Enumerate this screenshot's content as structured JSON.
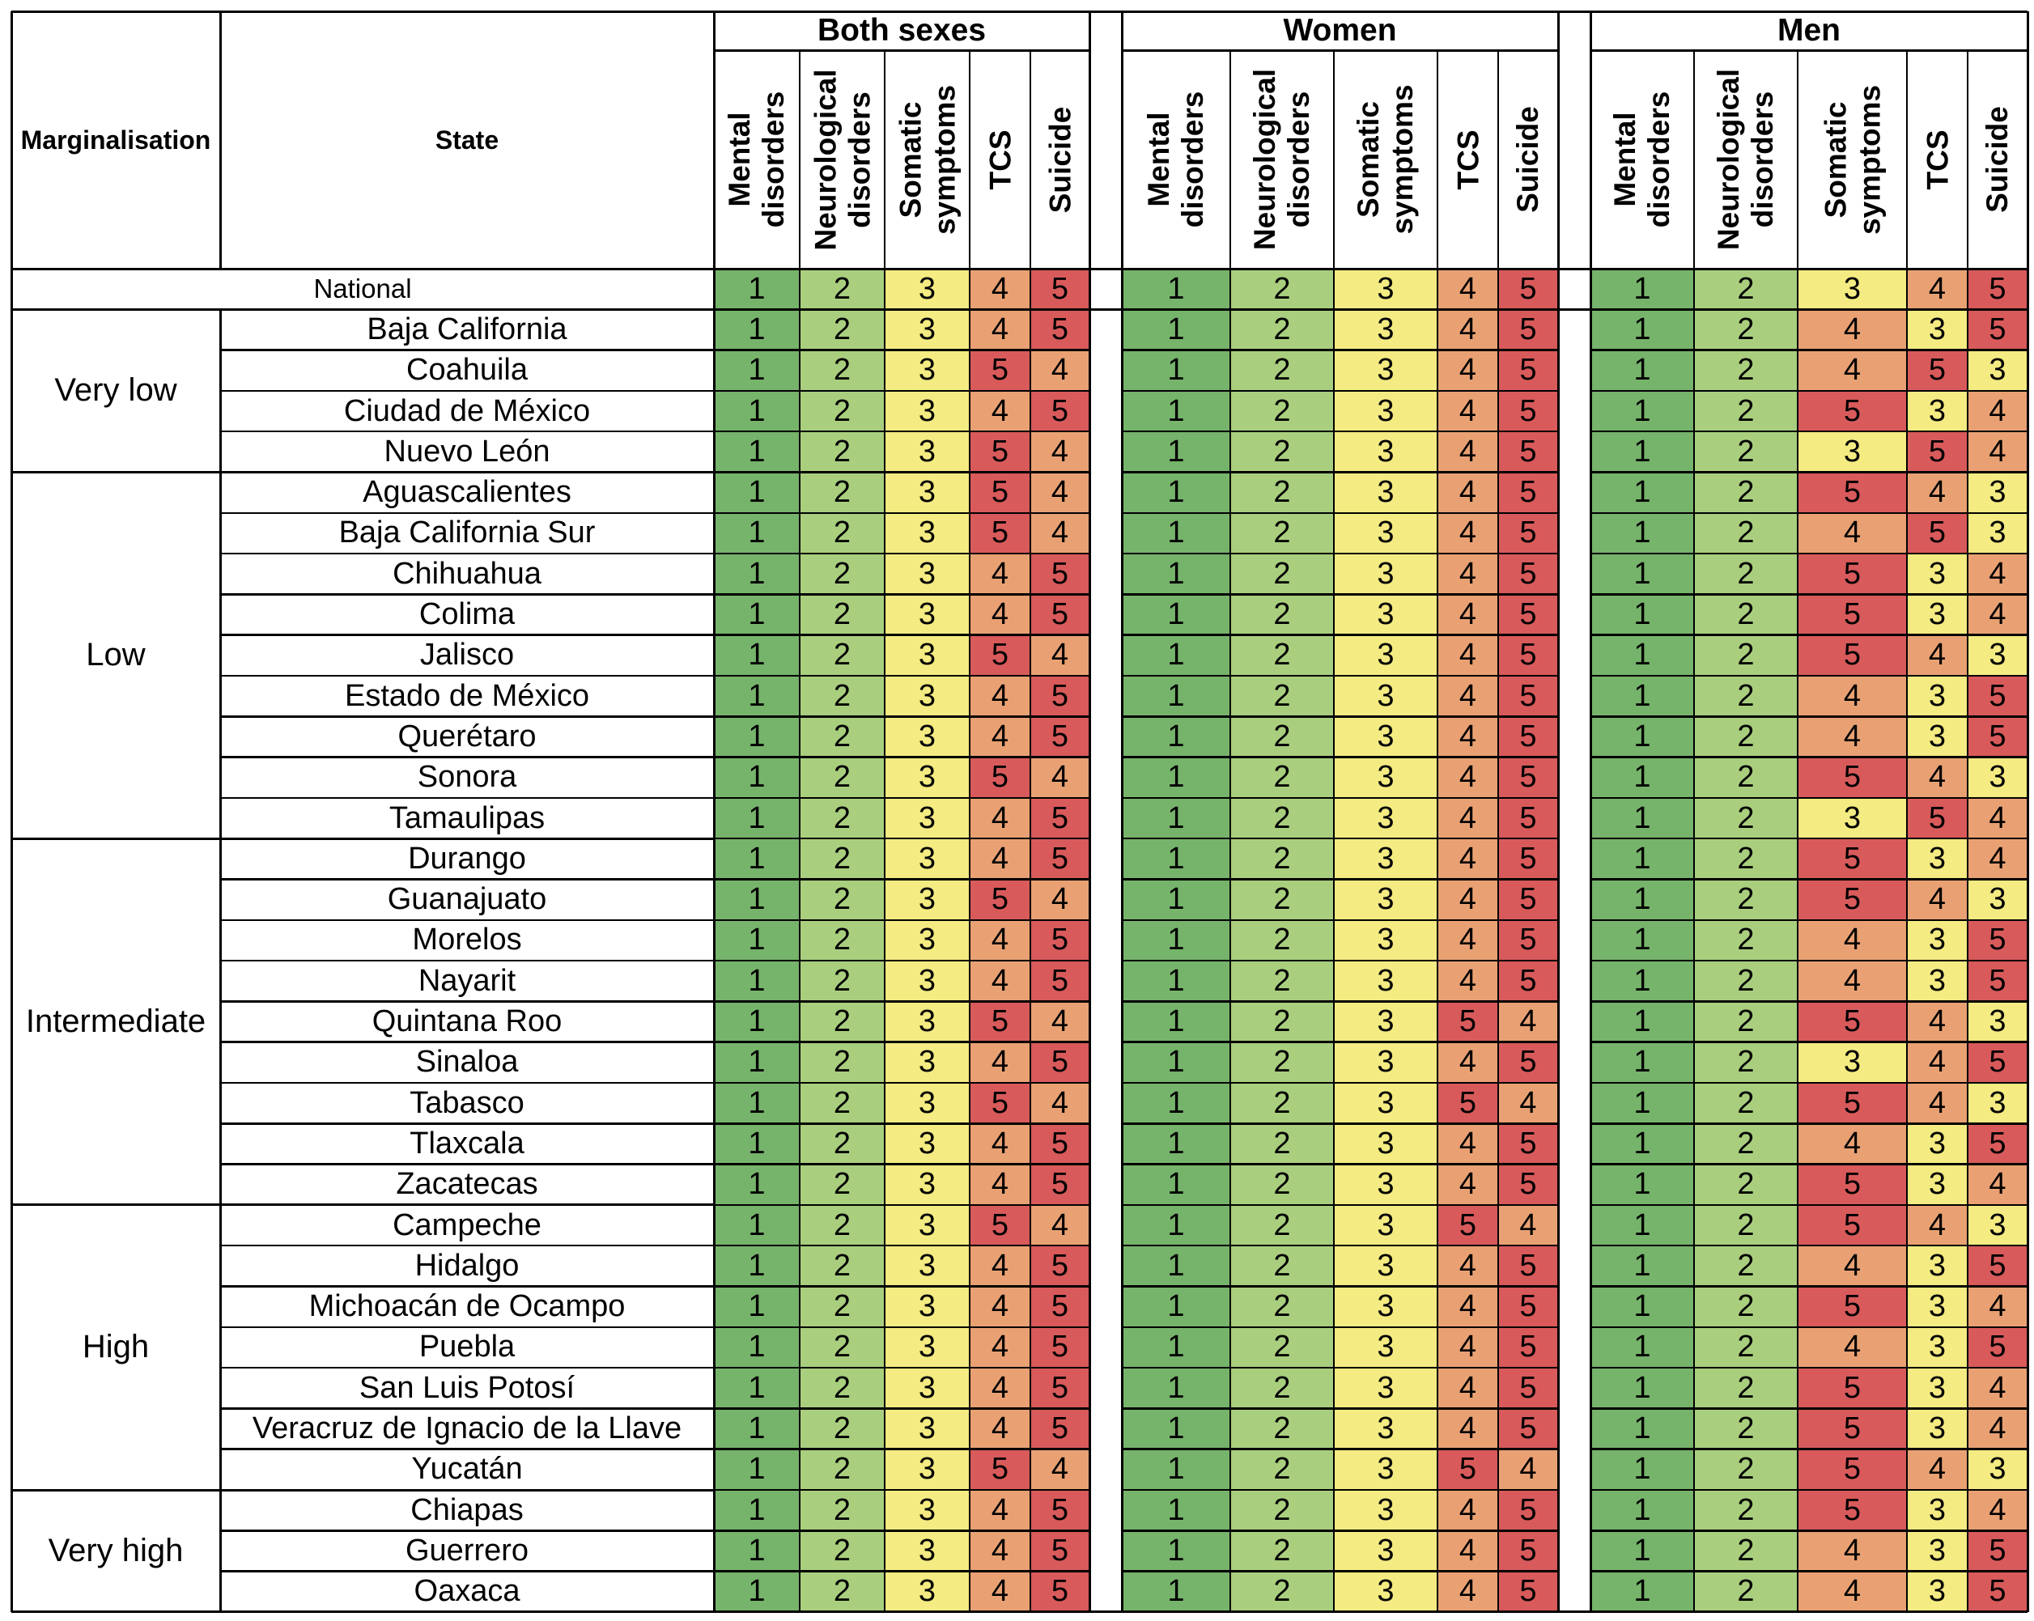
{
  "chart_data": {
    "type": "table",
    "header": {
      "marginalisation": "Marginalisation",
      "state": "State"
    },
    "groups": [
      "Both sexes",
      "Women",
      "Men"
    ],
    "columns": [
      [
        "Mental",
        "disorders"
      ],
      [
        "Neurological",
        "disorders"
      ],
      [
        "Somatic",
        "symptoms"
      ],
      [
        "TCS"
      ],
      [
        "Suicide"
      ]
    ],
    "colors": {
      "1": "#76b36b",
      "2": "#a9cf7e",
      "3": "#f4eb82",
      "4": "#e9a173",
      "5": "#d85a5b"
    },
    "national": {
      "label": "National",
      "values": [
        [
          1,
          2,
          3,
          4,
          5
        ],
        [
          1,
          2,
          3,
          4,
          5
        ],
        [
          1,
          2,
          3,
          4,
          5
        ]
      ]
    },
    "levels": [
      {
        "label": "Very low",
        "states": [
          {
            "name": "Baja California",
            "values": [
              [
                1,
                2,
                3,
                4,
                5
              ],
              [
                1,
                2,
                3,
                4,
                5
              ],
              [
                1,
                2,
                4,
                3,
                5
              ]
            ]
          },
          {
            "name": "Coahuila",
            "values": [
              [
                1,
                2,
                3,
                5,
                4
              ],
              [
                1,
                2,
                3,
                4,
                5
              ],
              [
                1,
                2,
                4,
                5,
                3
              ]
            ]
          },
          {
            "name": "Ciudad de México",
            "values": [
              [
                1,
                2,
                3,
                4,
                5
              ],
              [
                1,
                2,
                3,
                4,
                5
              ],
              [
                1,
                2,
                5,
                3,
                4
              ]
            ]
          },
          {
            "name": "Nuevo León",
            "values": [
              [
                1,
                2,
                3,
                5,
                4
              ],
              [
                1,
                2,
                3,
                4,
                5
              ],
              [
                1,
                2,
                3,
                5,
                4
              ]
            ]
          }
        ]
      },
      {
        "label": "Low",
        "states": [
          {
            "name": "Aguascalientes",
            "values": [
              [
                1,
                2,
                3,
                5,
                4
              ],
              [
                1,
                2,
                3,
                4,
                5
              ],
              [
                1,
                2,
                5,
                4,
                3
              ]
            ]
          },
          {
            "name": "Baja California Sur",
            "values": [
              [
                1,
                2,
                3,
                5,
                4
              ],
              [
                1,
                2,
                3,
                4,
                5
              ],
              [
                1,
                2,
                4,
                5,
                3
              ]
            ]
          },
          {
            "name": "Chihuahua",
            "values": [
              [
                1,
                2,
                3,
                4,
                5
              ],
              [
                1,
                2,
                3,
                4,
                5
              ],
              [
                1,
                2,
                5,
                3,
                4
              ]
            ]
          },
          {
            "name": "Colima",
            "values": [
              [
                1,
                2,
                3,
                4,
                5
              ],
              [
                1,
                2,
                3,
                4,
                5
              ],
              [
                1,
                2,
                5,
                3,
                4
              ]
            ]
          },
          {
            "name": "Jalisco",
            "values": [
              [
                1,
                2,
                3,
                5,
                4
              ],
              [
                1,
                2,
                3,
                4,
                5
              ],
              [
                1,
                2,
                5,
                4,
                3
              ]
            ]
          },
          {
            "name": "Estado de México",
            "values": [
              [
                1,
                2,
                3,
                4,
                5
              ],
              [
                1,
                2,
                3,
                4,
                5
              ],
              [
                1,
                2,
                4,
                3,
                5
              ]
            ]
          },
          {
            "name": "Querétaro",
            "values": [
              [
                1,
                2,
                3,
                4,
                5
              ],
              [
                1,
                2,
                3,
                4,
                5
              ],
              [
                1,
                2,
                4,
                3,
                5
              ]
            ]
          },
          {
            "name": "Sonora",
            "values": [
              [
                1,
                2,
                3,
                5,
                4
              ],
              [
                1,
                2,
                3,
                4,
                5
              ],
              [
                1,
                2,
                5,
                4,
                3
              ]
            ]
          },
          {
            "name": "Tamaulipas",
            "values": [
              [
                1,
                2,
                3,
                4,
                5
              ],
              [
                1,
                2,
                3,
                4,
                5
              ],
              [
                1,
                2,
                3,
                5,
                4
              ]
            ]
          }
        ]
      },
      {
        "label": "Intermediate",
        "states": [
          {
            "name": "Durango",
            "values": [
              [
                1,
                2,
                3,
                4,
                5
              ],
              [
                1,
                2,
                3,
                4,
                5
              ],
              [
                1,
                2,
                5,
                3,
                4
              ]
            ]
          },
          {
            "name": "Guanajuato",
            "values": [
              [
                1,
                2,
                3,
                5,
                4
              ],
              [
                1,
                2,
                3,
                4,
                5
              ],
              [
                1,
                2,
                5,
                4,
                3
              ]
            ]
          },
          {
            "name": "Morelos",
            "values": [
              [
                1,
                2,
                3,
                4,
                5
              ],
              [
                1,
                2,
                3,
                4,
                5
              ],
              [
                1,
                2,
                4,
                3,
                5
              ]
            ]
          },
          {
            "name": "Nayarit",
            "values": [
              [
                1,
                2,
                3,
                4,
                5
              ],
              [
                1,
                2,
                3,
                4,
                5
              ],
              [
                1,
                2,
                4,
                3,
                5
              ]
            ]
          },
          {
            "name": "Quintana Roo",
            "values": [
              [
                1,
                2,
                3,
                5,
                4
              ],
              [
                1,
                2,
                3,
                5,
                4
              ],
              [
                1,
                2,
                5,
                4,
                3
              ]
            ]
          },
          {
            "name": "Sinaloa",
            "values": [
              [
                1,
                2,
                3,
                4,
                5
              ],
              [
                1,
                2,
                3,
                4,
                5
              ],
              [
                1,
                2,
                3,
                4,
                5
              ]
            ]
          },
          {
            "name": "Tabasco",
            "values": [
              [
                1,
                2,
                3,
                5,
                4
              ],
              [
                1,
                2,
                3,
                5,
                4
              ],
              [
                1,
                2,
                5,
                4,
                3
              ]
            ]
          },
          {
            "name": "Tlaxcala",
            "values": [
              [
                1,
                2,
                3,
                4,
                5
              ],
              [
                1,
                2,
                3,
                4,
                5
              ],
              [
                1,
                2,
                4,
                3,
                5
              ]
            ]
          },
          {
            "name": "Zacatecas",
            "values": [
              [
                1,
                2,
                3,
                4,
                5
              ],
              [
                1,
                2,
                3,
                4,
                5
              ],
              [
                1,
                2,
                5,
                3,
                4
              ]
            ]
          }
        ]
      },
      {
        "label": "High",
        "states": [
          {
            "name": "Campeche",
            "values": [
              [
                1,
                2,
                3,
                5,
                4
              ],
              [
                1,
                2,
                3,
                5,
                4
              ],
              [
                1,
                2,
                5,
                4,
                3
              ]
            ]
          },
          {
            "name": "Hidalgo",
            "values": [
              [
                1,
                2,
                3,
                4,
                5
              ],
              [
                1,
                2,
                3,
                4,
                5
              ],
              [
                1,
                2,
                4,
                3,
                5
              ]
            ]
          },
          {
            "name": "Michoacán de Ocampo",
            "values": [
              [
                1,
                2,
                3,
                4,
                5
              ],
              [
                1,
                2,
                3,
                4,
                5
              ],
              [
                1,
                2,
                5,
                3,
                4
              ]
            ]
          },
          {
            "name": "Puebla",
            "values": [
              [
                1,
                2,
                3,
                4,
                5
              ],
              [
                1,
                2,
                3,
                4,
                5
              ],
              [
                1,
                2,
                4,
                3,
                5
              ]
            ]
          },
          {
            "name": "San Luis Potosí",
            "values": [
              [
                1,
                2,
                3,
                4,
                5
              ],
              [
                1,
                2,
                3,
                4,
                5
              ],
              [
                1,
                2,
                5,
                3,
                4
              ]
            ]
          },
          {
            "name": "Veracruz de Ignacio de la Llave",
            "values": [
              [
                1,
                2,
                3,
                4,
                5
              ],
              [
                1,
                2,
                3,
                4,
                5
              ],
              [
                1,
                2,
                5,
                3,
                4
              ]
            ]
          },
          {
            "name": "Yucatán",
            "values": [
              [
                1,
                2,
                3,
                5,
                4
              ],
              [
                1,
                2,
                3,
                5,
                4
              ],
              [
                1,
                2,
                5,
                4,
                3
              ]
            ]
          }
        ]
      },
      {
        "label": "Very high",
        "states": [
          {
            "name": "Chiapas",
            "values": [
              [
                1,
                2,
                3,
                4,
                5
              ],
              [
                1,
                2,
                3,
                4,
                5
              ],
              [
                1,
                2,
                5,
                3,
                4
              ]
            ]
          },
          {
            "name": "Guerrero",
            "values": [
              [
                1,
                2,
                3,
                4,
                5
              ],
              [
                1,
                2,
                3,
                4,
                5
              ],
              [
                1,
                2,
                4,
                3,
                5
              ]
            ]
          },
          {
            "name": "Oaxaca",
            "values": [
              [
                1,
                2,
                3,
                4,
                5
              ],
              [
                1,
                2,
                3,
                4,
                5
              ],
              [
                1,
                2,
                4,
                3,
                5
              ]
            ]
          }
        ]
      }
    ]
  }
}
